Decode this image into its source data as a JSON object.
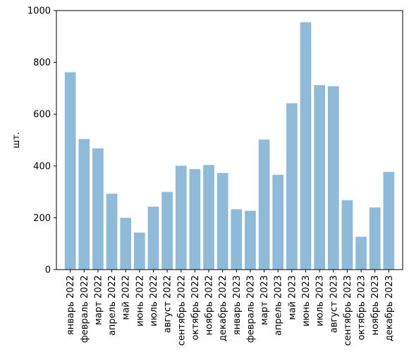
{
  "chart_data": {
    "type": "bar",
    "title": "",
    "xlabel": "",
    "ylabel": "шт.",
    "ylim": [
      0,
      1000
    ],
    "yticks": [
      "0",
      "200",
      "400",
      "600",
      "800",
      "1000"
    ],
    "grid": false,
    "legend": "none",
    "bar_color": "#8fbbd9",
    "categories": [
      "январь 2022",
      "февраль 2022",
      "март 2022",
      "апрель 2022",
      "май 2022",
      "июнь 2022",
      "июль 2022",
      "август 2022",
      "сентябрь 2022",
      "октябрь 2022",
      "ноябрь 2022",
      "декабрь 2022",
      "январь 2023",
      "февраль 2023",
      "март 2023",
      "апрель 2023",
      "май 2023",
      "июнь 2023",
      "июль 2023",
      "август 2023",
      "сентябрь 2023",
      "октябрь 2023",
      "ноябрь 2023",
      "декабрь 2023"
    ],
    "values": [
      762,
      504,
      468,
      293,
      200,
      143,
      243,
      300,
      401,
      388,
      404,
      373,
      233,
      227,
      502,
      366,
      642,
      955,
      712,
      708,
      268,
      127,
      240,
      377
    ]
  }
}
